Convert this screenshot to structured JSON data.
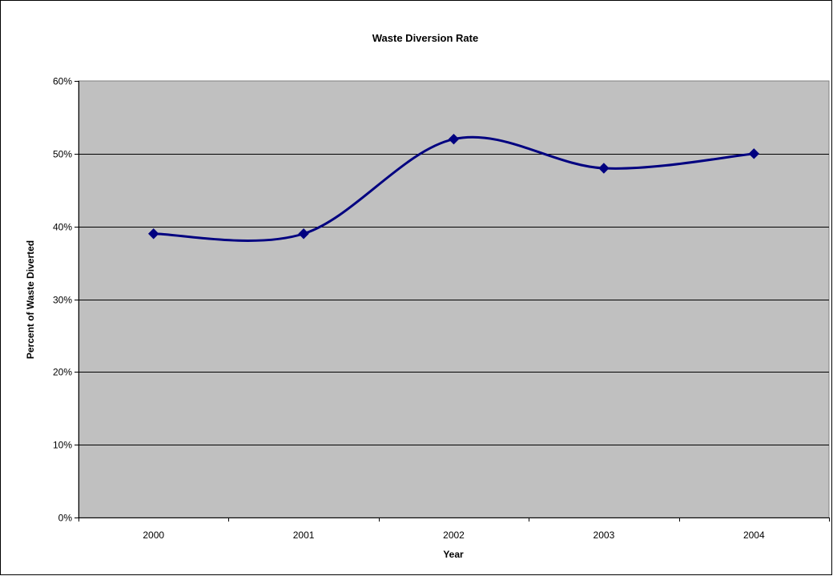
{
  "chart_data": {
    "type": "line",
    "title": "Waste Diversion Rate",
    "xlabel": "Year",
    "ylabel": "Percent of Waste Diverted",
    "categories": [
      "2000",
      "2001",
      "2002",
      "2003",
      "2004"
    ],
    "series": [
      {
        "values": [
          0.39,
          0.39,
          0.52,
          0.48,
          0.5
        ],
        "color": "#000080",
        "marker": "diamond",
        "smoothed": true
      }
    ],
    "ylim": [
      0,
      0.6
    ],
    "yticks": [
      0,
      0.1,
      0.2,
      0.3,
      0.4,
      0.5,
      0.6
    ],
    "ytick_labels": [
      "0%",
      "10%",
      "20%",
      "30%",
      "40%",
      "50%",
      "60%"
    ],
    "grid": "horizontal",
    "legend": "none",
    "plot_background": "#c0c0c0"
  }
}
